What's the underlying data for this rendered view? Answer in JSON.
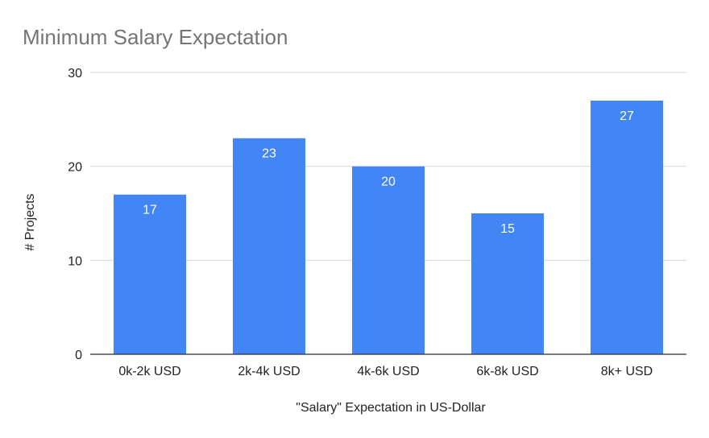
{
  "chart_data": {
    "type": "bar",
    "title": "Minimum Salary Expectation",
    "xlabel": "\"Salary\" Expectation in US-Dollar",
    "ylabel": "# Projects",
    "categories": [
      "0k-2k USD",
      "2k-4k USD",
      "4k-6k USD",
      "6k-8k USD",
      "8k+ USD"
    ],
    "values": [
      17,
      23,
      20,
      15,
      27
    ],
    "ylim": [
      0,
      30
    ],
    "yticks": [
      0,
      10,
      20,
      30
    ],
    "grid": true,
    "legend": "none",
    "colors": {
      "bar": "#4285F4",
      "grid": "#D9D9D9",
      "axis": "#333333",
      "title": "#757575",
      "data_label": "#FFFFFF"
    }
  }
}
